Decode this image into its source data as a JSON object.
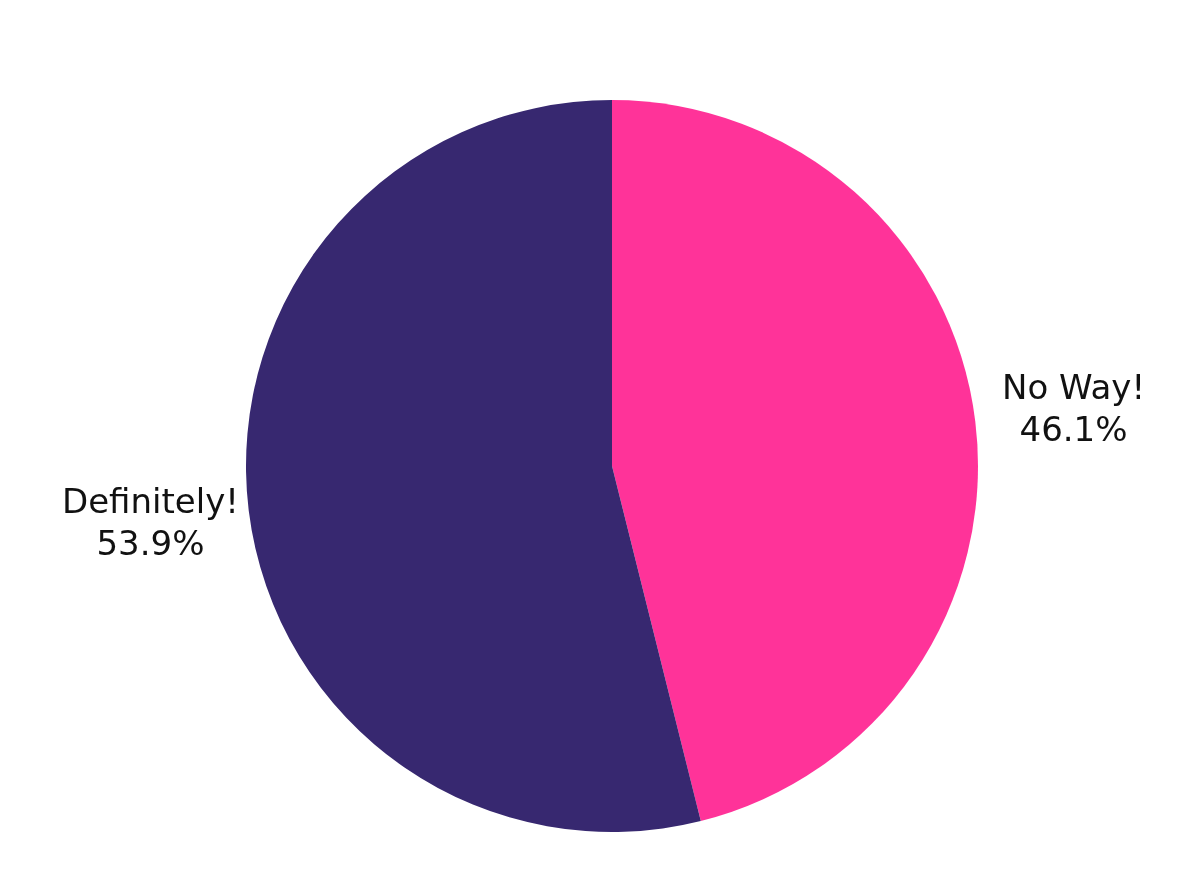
{
  "chart_data": {
    "type": "pie",
    "categories": [
      "No Way!",
      "Definitely!"
    ],
    "values": [
      46.1,
      53.9
    ],
    "colors": [
      "#ff3399",
      "#372870"
    ],
    "value_labels": [
      "46.1%",
      "53.9%"
    ]
  }
}
